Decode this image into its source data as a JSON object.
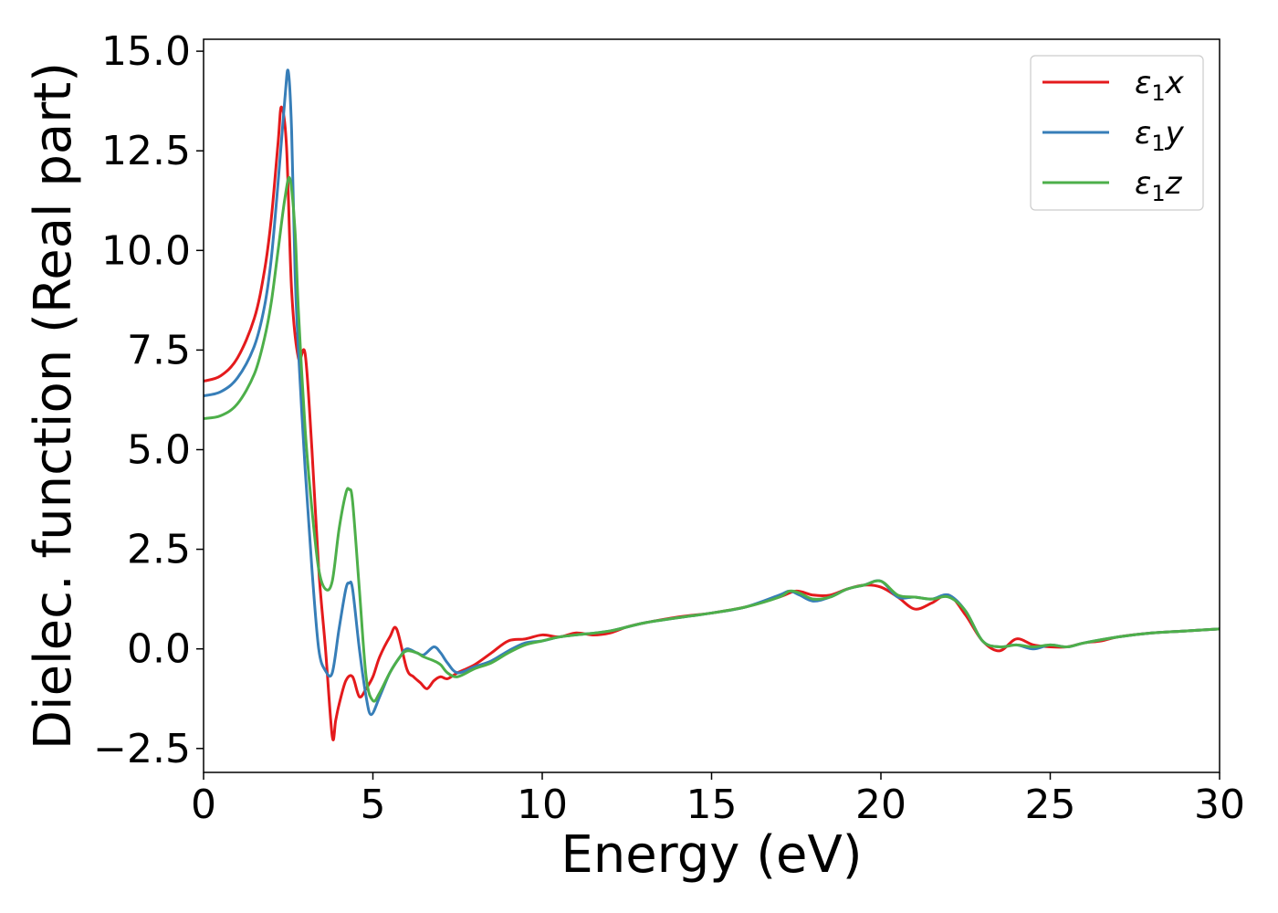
{
  "chart_data": {
    "type": "line",
    "xlabel": "Energy (eV)",
    "ylabel": "Dielec. function (Real part)",
    "xlim": [
      0,
      30
    ],
    "ylim": [
      -3.1,
      15.3
    ],
    "xticks": [
      0,
      5,
      10,
      15,
      20,
      25,
      30
    ],
    "xtick_labels": [
      "0",
      "5",
      "10",
      "15",
      "20",
      "25",
      "30"
    ],
    "yticks": [
      -2.5,
      0.0,
      2.5,
      5.0,
      7.5,
      10.0,
      12.5,
      15.0
    ],
    "ytick_labels": [
      "−2.5",
      "0.0",
      "2.5",
      "5.0",
      "7.5",
      "10.0",
      "12.5",
      "15.0"
    ],
    "grid": false,
    "legend_position": "top-right",
    "series": [
      {
        "name": "ε1x",
        "legend_base": "ε",
        "legend_sub": "1",
        "legend_suffix": "x",
        "color": "#e41a1c",
        "x": [
          0,
          0.5,
          1.0,
          1.5,
          1.8,
          2.0,
          2.2,
          2.3,
          2.45,
          2.6,
          2.8,
          3.0,
          3.2,
          3.4,
          3.6,
          3.8,
          3.9,
          4.0,
          4.2,
          4.4,
          4.6,
          4.8,
          5.0,
          5.2,
          5.5,
          5.7,
          6.0,
          6.2,
          6.4,
          6.6,
          6.8,
          7.0,
          7.2,
          7.5,
          8.0,
          8.5,
          9.0,
          9.5,
          10.0,
          10.5,
          11.0,
          11.5,
          12.0,
          12.5,
          13.0,
          14.0,
          15.0,
          16.0,
          17.0,
          17.5,
          18.0,
          18.5,
          19.0,
          19.5,
          20.0,
          20.5,
          21.0,
          21.5,
          22.0,
          22.5,
          23.0,
          23.5,
          24.0,
          24.5,
          25.0,
          25.5,
          26.0,
          26.5,
          27.0,
          28.0,
          29.0,
          30.0
        ],
        "y": [
          6.72,
          6.85,
          7.3,
          8.3,
          9.5,
          10.8,
          12.7,
          13.6,
          12.6,
          9.0,
          7.3,
          7.4,
          5.0,
          2.0,
          0.0,
          -2.2,
          -1.8,
          -1.4,
          -0.8,
          -0.7,
          -1.2,
          -1.0,
          -0.7,
          -0.2,
          0.3,
          0.5,
          -0.5,
          -0.7,
          -0.85,
          -1.0,
          -0.8,
          -0.7,
          -0.75,
          -0.6,
          -0.4,
          -0.1,
          0.2,
          0.25,
          0.35,
          0.3,
          0.4,
          0.35,
          0.4,
          0.55,
          0.65,
          0.8,
          0.9,
          1.05,
          1.3,
          1.45,
          1.35,
          1.35,
          1.5,
          1.6,
          1.55,
          1.3,
          1.0,
          1.15,
          1.35,
          0.85,
          0.2,
          -0.05,
          0.25,
          0.1,
          0.05,
          0.05,
          0.15,
          0.2,
          0.3,
          0.4,
          0.45,
          0.5
        ]
      },
      {
        "name": "ε1y",
        "legend_base": "ε",
        "legend_sub": "1",
        "legend_suffix": "y",
        "color": "#377eb8",
        "x": [
          0,
          0.5,
          1.0,
          1.5,
          1.8,
          2.0,
          2.2,
          2.4,
          2.5,
          2.6,
          2.7,
          2.8,
          3.0,
          3.2,
          3.4,
          3.6,
          3.8,
          4.0,
          4.2,
          4.3,
          4.4,
          4.6,
          4.8,
          4.95,
          5.2,
          5.5,
          5.8,
          6.0,
          6.3,
          6.5,
          6.8,
          7.0,
          7.2,
          7.5,
          8.0,
          8.5,
          9.0,
          9.5,
          10.0,
          10.5,
          11.0,
          12.0,
          13.0,
          14.0,
          15.0,
          16.0,
          17.0,
          17.3,
          17.6,
          18.0,
          18.5,
          19.0,
          19.5,
          20.0,
          20.5,
          21.0,
          21.5,
          22.0,
          22.5,
          23.0,
          23.5,
          24.0,
          24.5,
          25.0,
          25.5,
          26.0,
          27.0,
          28.0,
          29.0,
          30.0
        ],
        "y": [
          6.35,
          6.45,
          6.8,
          7.6,
          8.6,
          9.8,
          11.7,
          13.8,
          14.5,
          13.0,
          9.5,
          7.5,
          4.5,
          2.0,
          0.0,
          -0.55,
          -0.6,
          0.5,
          1.5,
          1.65,
          1.5,
          0.0,
          -1.2,
          -1.65,
          -1.2,
          -0.6,
          -0.2,
          0.0,
          -0.1,
          -0.15,
          0.05,
          -0.1,
          -0.35,
          -0.6,
          -0.45,
          -0.3,
          -0.05,
          0.15,
          0.2,
          0.3,
          0.35,
          0.45,
          0.65,
          0.78,
          0.9,
          1.05,
          1.35,
          1.45,
          1.35,
          1.2,
          1.3,
          1.5,
          1.6,
          1.7,
          1.3,
          1.3,
          1.25,
          1.35,
          0.95,
          0.2,
          0.05,
          0.1,
          0.0,
          0.1,
          0.05,
          0.15,
          0.3,
          0.4,
          0.45,
          0.5
        ]
      },
      {
        "name": "ε1z",
        "legend_base": "ε",
        "legend_sub": "1",
        "legend_suffix": "z",
        "color": "#4daf4a",
        "x": [
          0,
          0.5,
          1.0,
          1.5,
          1.8,
          2.0,
          2.2,
          2.4,
          2.55,
          2.7,
          2.8,
          3.0,
          3.2,
          3.4,
          3.6,
          3.8,
          4.0,
          4.2,
          4.3,
          4.4,
          4.6,
          4.8,
          5.0,
          5.2,
          5.5,
          5.8,
          6.0,
          6.3,
          6.5,
          6.8,
          7.0,
          7.2,
          7.5,
          8.0,
          8.5,
          9.0,
          9.5,
          10.0,
          10.5,
          11.0,
          12.0,
          13.0,
          14.0,
          15.0,
          16.0,
          17.0,
          17.3,
          17.6,
          18.0,
          18.5,
          19.0,
          19.5,
          20.0,
          20.5,
          21.0,
          21.5,
          22.0,
          22.5,
          23.0,
          23.5,
          24.0,
          24.5,
          25.0,
          25.5,
          26.0,
          27.0,
          28.0,
          29.0,
          30.0
        ],
        "y": [
          5.78,
          5.85,
          6.15,
          6.9,
          7.8,
          8.7,
          10.0,
          11.3,
          11.8,
          10.5,
          8.5,
          5.5,
          3.5,
          2.0,
          1.5,
          1.7,
          3.0,
          3.9,
          4.0,
          3.7,
          1.5,
          -0.7,
          -1.3,
          -1.1,
          -0.6,
          -0.2,
          -0.05,
          -0.1,
          -0.2,
          -0.3,
          -0.4,
          -0.6,
          -0.7,
          -0.5,
          -0.35,
          -0.1,
          0.1,
          0.2,
          0.3,
          0.35,
          0.45,
          0.65,
          0.78,
          0.9,
          1.05,
          1.3,
          1.45,
          1.4,
          1.25,
          1.3,
          1.5,
          1.6,
          1.7,
          1.35,
          1.3,
          1.25,
          1.3,
          0.95,
          0.2,
          0.05,
          0.1,
          0.05,
          0.1,
          0.05,
          0.15,
          0.3,
          0.4,
          0.45,
          0.5
        ]
      }
    ]
  }
}
